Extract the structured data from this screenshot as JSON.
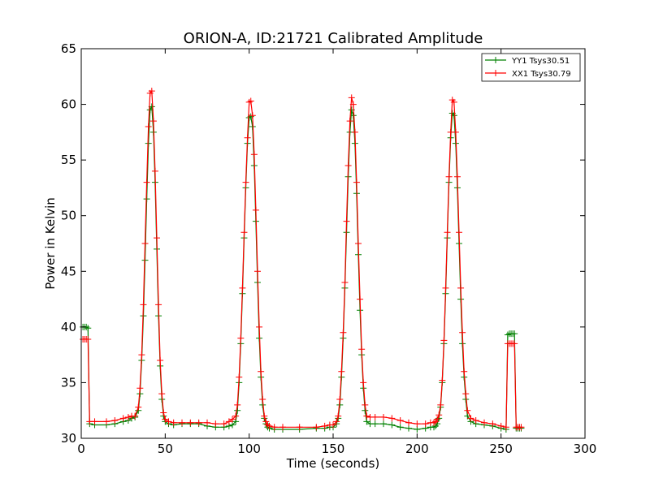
{
  "chart_data": {
    "type": "line",
    "title": "ORION-A, ID:21721 Calibrated Amplitude",
    "xlabel": "Time (seconds)",
    "ylabel": "Power in Kelvin",
    "xlim": [
      0,
      300
    ],
    "ylim": [
      30,
      65
    ],
    "xticks": [
      "0",
      "50",
      "100",
      "150",
      "200",
      "250",
      "300"
    ],
    "yticks": [
      "30",
      "35",
      "40",
      "45",
      "50",
      "55",
      "60",
      "65"
    ],
    "legend_position": "top-right",
    "grid": false,
    "marker": "+",
    "series": [
      {
        "name": "YY1 Tsys30.51",
        "color": "#008000",
        "x": [
          1,
          2,
          3,
          4,
          5,
          8,
          15,
          20,
          25,
          28,
          30,
          32,
          34,
          35,
          36,
          37,
          38,
          39,
          40,
          41,
          42,
          43,
          44,
          45,
          46,
          47,
          48,
          49,
          50,
          52,
          55,
          60,
          65,
          70,
          75,
          80,
          85,
          88,
          90,
          92,
          93,
          94,
          95,
          96,
          97,
          98,
          99,
          100,
          101,
          102,
          103,
          104,
          105,
          106,
          107,
          108,
          109,
          110,
          111,
          112,
          115,
          120,
          130,
          140,
          145,
          148,
          150,
          152,
          153,
          154,
          155,
          156,
          157,
          158,
          159,
          160,
          161,
          162,
          163,
          164,
          165,
          166,
          167,
          168,
          169,
          170,
          172,
          175,
          180,
          185,
          190,
          195,
          200,
          205,
          208,
          210,
          211,
          212,
          213,
          214,
          215,
          216,
          217,
          218,
          219,
          220,
          221,
          222,
          223,
          224,
          225,
          226,
          227,
          228,
          229,
          230,
          232,
          235,
          240,
          245,
          250,
          253,
          254,
          255,
          256,
          257,
          258,
          259,
          260,
          261,
          262
        ],
        "y": [
          40.0,
          40.0,
          40.0,
          39.9,
          31.3,
          31.2,
          31.2,
          31.3,
          31.5,
          31.6,
          31.8,
          31.9,
          32.5,
          34.0,
          37.0,
          41.0,
          46.0,
          51.5,
          56.5,
          59.5,
          59.8,
          57.5,
          53.0,
          47.0,
          41.0,
          36.5,
          33.5,
          32.0,
          31.5,
          31.3,
          31.2,
          31.3,
          31.3,
          31.3,
          31.1,
          31.0,
          31.0,
          31.1,
          31.2,
          31.5,
          32.5,
          35.0,
          38.5,
          43.0,
          48.0,
          52.5,
          56.5,
          58.8,
          58.9,
          58.0,
          54.5,
          49.5,
          44.0,
          39.0,
          35.5,
          33.0,
          31.8,
          31.3,
          31.0,
          30.9,
          30.8,
          30.8,
          30.8,
          30.9,
          30.9,
          31.0,
          31.0,
          31.3,
          31.8,
          33.0,
          35.5,
          39.0,
          43.5,
          48.5,
          53.5,
          57.5,
          59.5,
          59.0,
          56.5,
          52.0,
          46.5,
          41.5,
          37.5,
          34.5,
          32.5,
          31.5,
          31.3,
          31.3,
          31.3,
          31.2,
          31.0,
          30.9,
          30.8,
          30.9,
          31.0,
          31.0,
          31.1,
          31.3,
          31.8,
          32.8,
          35.0,
          38.5,
          43.0,
          48.0,
          53.0,
          57.0,
          59.2,
          59.0,
          56.5,
          52.5,
          47.5,
          42.5,
          38.5,
          35.5,
          33.5,
          32.0,
          31.5,
          31.3,
          31.2,
          31.1,
          30.9,
          30.8,
          39.3,
          39.4,
          39.4,
          39.4,
          39.4,
          30.9,
          30.9,
          30.9,
          30.9
        ]
      },
      {
        "name": "XX1 Tsys30.79",
        "color": "#ff0000",
        "x": [
          1,
          2,
          3,
          4,
          5,
          8,
          15,
          20,
          25,
          28,
          30,
          32,
          34,
          35,
          36,
          37,
          38,
          39,
          40,
          41,
          42,
          43,
          44,
          45,
          46,
          47,
          48,
          49,
          50,
          52,
          55,
          60,
          65,
          70,
          75,
          80,
          85,
          88,
          90,
          92,
          93,
          94,
          95,
          96,
          97,
          98,
          99,
          100,
          101,
          102,
          103,
          104,
          105,
          106,
          107,
          108,
          109,
          110,
          111,
          112,
          115,
          120,
          130,
          140,
          145,
          148,
          150,
          152,
          153,
          154,
          155,
          156,
          157,
          158,
          159,
          160,
          161,
          162,
          163,
          164,
          165,
          166,
          167,
          168,
          169,
          170,
          172,
          175,
          180,
          185,
          190,
          195,
          200,
          205,
          208,
          210,
          211,
          212,
          213,
          214,
          215,
          216,
          217,
          218,
          219,
          220,
          221,
          222,
          223,
          224,
          225,
          226,
          227,
          228,
          229,
          230,
          232,
          235,
          240,
          245,
          250,
          253,
          254,
          255,
          256,
          257,
          258,
          259,
          260,
          261,
          262
        ],
        "y": [
          38.9,
          38.9,
          38.9,
          38.9,
          31.5,
          31.5,
          31.5,
          31.6,
          31.8,
          31.9,
          32.0,
          32.0,
          32.8,
          34.5,
          37.5,
          42.0,
          47.5,
          53.0,
          58.0,
          61.0,
          61.2,
          58.5,
          54.0,
          48.0,
          42.0,
          37.0,
          34.0,
          32.3,
          31.7,
          31.5,
          31.4,
          31.4,
          31.4,
          31.4,
          31.4,
          31.3,
          31.3,
          31.5,
          31.7,
          32.0,
          33.0,
          35.5,
          39.0,
          43.5,
          48.5,
          53.0,
          57.0,
          60.2,
          60.3,
          59.0,
          55.5,
          50.5,
          45.0,
          40.0,
          36.0,
          33.5,
          32.0,
          31.5,
          31.2,
          31.1,
          31.0,
          31.0,
          31.0,
          31.0,
          31.1,
          31.2,
          31.2,
          31.5,
          32.0,
          33.5,
          36.0,
          39.5,
          44.0,
          49.5,
          54.5,
          58.5,
          60.6,
          60.0,
          57.5,
          53.0,
          47.5,
          42.5,
          38.0,
          35.0,
          33.0,
          32.0,
          31.9,
          31.9,
          31.9,
          31.8,
          31.6,
          31.4,
          31.3,
          31.3,
          31.4,
          31.4,
          31.5,
          31.7,
          32.1,
          33.0,
          35.2,
          38.8,
          43.5,
          48.5,
          53.5,
          57.5,
          60.4,
          60.2,
          57.5,
          53.5,
          48.5,
          43.5,
          39.5,
          36.0,
          34.0,
          32.5,
          31.8,
          31.6,
          31.4,
          31.3,
          31.1,
          31.0,
          38.5,
          38.5,
          38.5,
          38.5,
          38.5,
          31.0,
          31.0,
          31.0,
          31.0
        ]
      }
    ]
  }
}
